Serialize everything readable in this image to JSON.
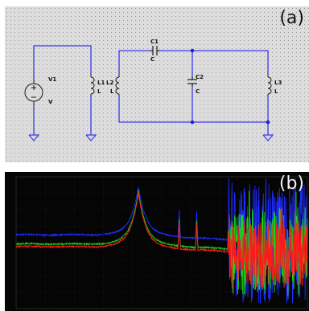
{
  "panel_a": {
    "label": "(a)",
    "components": {
      "v1_name": "V1",
      "v1_value": "V",
      "l1_name": "L1",
      "l1_value": "L",
      "l2_name": "L2",
      "l2_value": "L",
      "l3_name": "L3",
      "l3_value": "L",
      "c1_name": "C1",
      "c1_value": "C",
      "c2_name": "C2",
      "c2_value": "C"
    },
    "colors": {
      "wire": "#3a3af0",
      "component": "#1a1a1a",
      "background": "#dcdcdc",
      "node": "#2020e0"
    }
  },
  "panel_b": {
    "label": "(b)",
    "colors": {
      "background": "#050505",
      "trace_blue": "#1e2cff",
      "trace_green": "#18d018",
      "trace_red": "#ff1a1a",
      "grid": "#2b2b2b"
    },
    "chart_data": {
      "type": "line",
      "title": "",
      "xlabel": "",
      "ylabel": "",
      "grid": true,
      "ylim": [
        0,
        10
      ],
      "series": [
        {
          "color": "blue",
          "baseline": 5.6,
          "peak": 9.3,
          "peak_x": 0.42,
          "noise_start": 0.73,
          "noise_level": 4.6
        },
        {
          "color": "green",
          "baseline": 4.9,
          "peak": 9.0,
          "peak_x": 0.42,
          "noise_start": 0.73,
          "noise_level": 3.4
        },
        {
          "color": "red",
          "baseline": 4.7,
          "peak": 8.8,
          "peak_x": 0.42,
          "noise_start": 0.73,
          "noise_level": 2.6
        }
      ],
      "harmonics_x": [
        0.56,
        0.62,
        0.73,
        0.8,
        0.86,
        0.91,
        0.96
      ]
    }
  }
}
